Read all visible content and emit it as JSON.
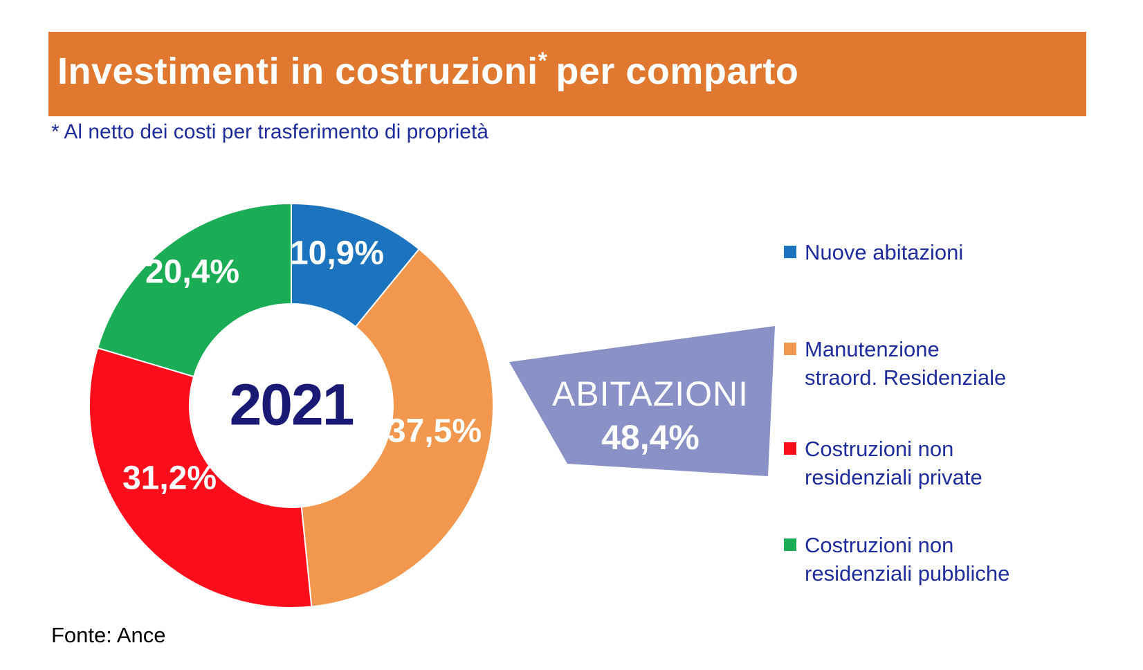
{
  "header": {
    "title_main": "Investimenti in costruzioni",
    "title_sup": "*",
    "title_rest": "per comparto",
    "footnote": "* Al netto dei costi per trasferimento di proprietà"
  },
  "chart_data": {
    "type": "pie",
    "subtype": "donut",
    "title": "Investimenti in costruzioni per comparto",
    "center_label": "2021",
    "direction": "clockwise",
    "start_angle_deg": 0,
    "categories": [
      "Nuove abitazioni",
      "Manutenzione straord. Residenziale",
      "Costruzioni non residenziali private",
      "Costruzioni non residenziali pubbliche"
    ],
    "values": [
      10.9,
      37.5,
      31.2,
      20.4
    ],
    "value_labels": [
      "10,9%",
      "37,5%",
      "31,2%",
      "20,4%"
    ],
    "colors": [
      "#1C74BE",
      "#F2984E",
      "#FB0D1B",
      "#1AAD55"
    ],
    "annotation": {
      "label": "ABITAZIONI",
      "value": "48,4%",
      "color": "#8991C7"
    }
  },
  "legend": {
    "items": [
      {
        "label": "Nuove abitazioni",
        "line1": "Nuove abitazioni",
        "line2": "",
        "color": "#1C74BE"
      },
      {
        "label": "Manutenzione straord. Residenziale",
        "line1": "Manutenzione",
        "line2": "straord. Residenziale",
        "color": "#F2984E"
      },
      {
        "label": "Costruzioni non residenziali private",
        "line1": "Costruzioni non",
        "line2": "residenziali private",
        "color": "#FB0D1B"
      },
      {
        "label": "Costruzioni non residenziali pubbliche",
        "line1": "Costruzioni non",
        "line2": "residenziali pubbliche",
        "color": "#1AAD55"
      }
    ]
  },
  "callout": {
    "title": "ABITAZIONI",
    "value": "48,4%"
  },
  "footer": {
    "source": "Fonte: Ance"
  }
}
